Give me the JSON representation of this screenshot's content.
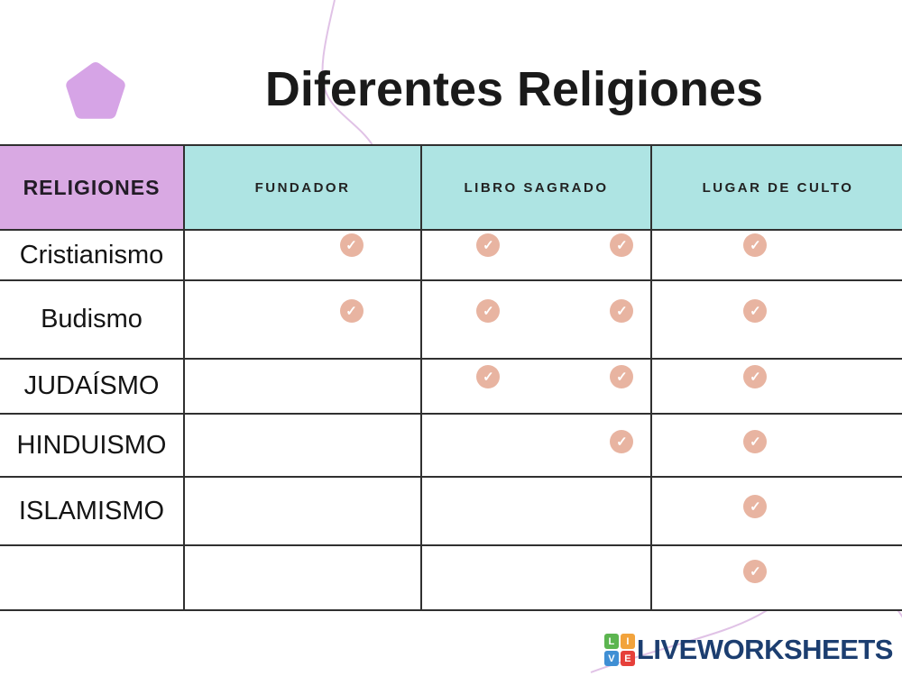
{
  "page": {
    "background": "#ffffff"
  },
  "title": "Diferentes Religiones",
  "decor": {
    "pentagon_color": "#d6a4e6",
    "curve_color": "#e0c2e6"
  },
  "table": {
    "religions_header": "RELIGIONES",
    "columns": [
      "FUNDADOR",
      "LIBRO SAGRADO",
      "LUGAR DE CULTO"
    ],
    "header_colors": {
      "religions_bg": "#d9a9e3",
      "columns_bg": "#aee4e3"
    },
    "check_color": "#e8b4a1",
    "check_glyph": "✓",
    "rows": [
      {
        "label": "Cristianismo",
        "checks": {
          "fundador": [
            "center"
          ],
          "libro_sagrado": [
            "left",
            "right"
          ],
          "lugar_de_culto": [
            "center"
          ]
        }
      },
      {
        "label": "Budismo",
        "checks": {
          "fundador": [
            "center"
          ],
          "libro_sagrado": [
            "left",
            "right"
          ],
          "lugar_de_culto": [
            "center"
          ]
        }
      },
      {
        "label": "JUDAÍSMO",
        "checks": {
          "fundador": [],
          "libro_sagrado": [
            "left",
            "right"
          ],
          "lugar_de_culto": [
            "center"
          ]
        }
      },
      {
        "label": "HINDUISMO",
        "checks": {
          "fundador": [],
          "libro_sagrado": [
            "right"
          ],
          "lugar_de_culto": [
            "center"
          ]
        }
      },
      {
        "label": "ISLAMISMO",
        "checks": {
          "fundador": [],
          "libro_sagrado": [],
          "lugar_de_culto": [
            "center"
          ]
        }
      },
      {
        "label": "",
        "checks": {
          "fundador": [],
          "libro_sagrado": [],
          "lugar_de_culto": [
            "center"
          ]
        }
      }
    ]
  },
  "footer": {
    "brand": "LIVEWORKSHEETS",
    "brand_color": "#1c3e70",
    "tiles": [
      {
        "letter": "L",
        "color": "#5cb550"
      },
      {
        "letter": "I",
        "color": "#f2a33c"
      },
      {
        "letter": "V",
        "color": "#3f8fd4"
      },
      {
        "letter": "E",
        "color": "#e6403a"
      }
    ]
  }
}
